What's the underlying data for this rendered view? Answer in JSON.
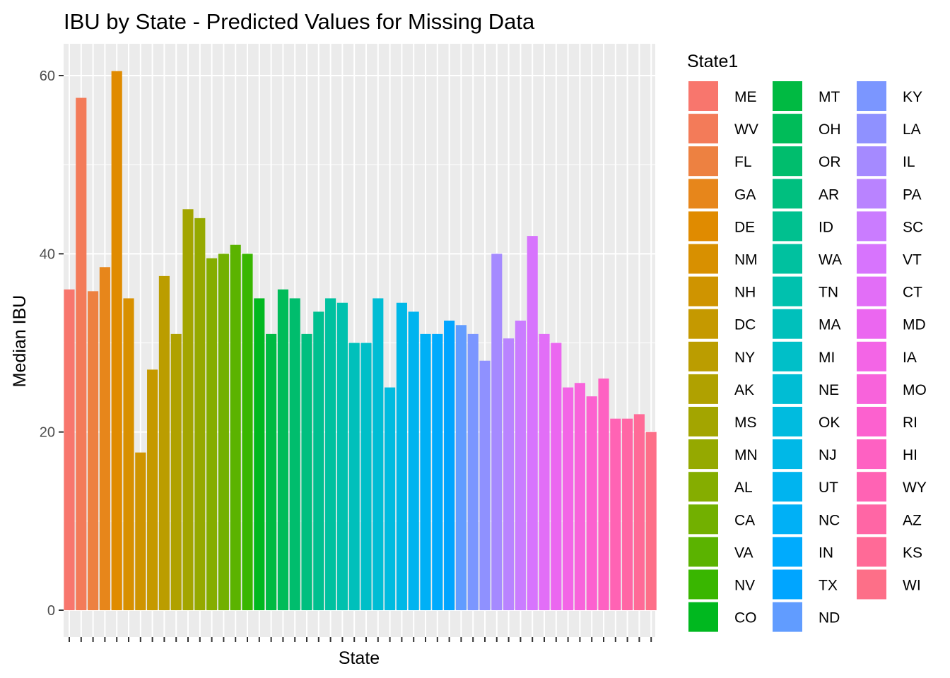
{
  "chart_data": {
    "type": "bar",
    "title": "IBU by State - Predicted Values for Missing Data",
    "xlabel": "State",
    "ylabel": "Median IBU",
    "ylim": [
      0,
      63
    ],
    "y_ticks": [
      0,
      20,
      40,
      60
    ],
    "grid": true,
    "legend_title": "State1",
    "legend_placement": "right",
    "categories": [
      "ME",
      "WV",
      "FL",
      "GA",
      "DE",
      "NM",
      "NH",
      "DC",
      "NY",
      "AK",
      "MS",
      "MN",
      "AL",
      "CA",
      "VA",
      "NV",
      "CO",
      "MT",
      "OH",
      "OR",
      "AR",
      "ID",
      "WA",
      "TN",
      "MA",
      "MI",
      "NE",
      "OK",
      "NJ",
      "UT",
      "NC",
      "IN",
      "TX",
      "ND",
      "KY",
      "LA",
      "IL",
      "PA",
      "SC",
      "VT",
      "CT",
      "MD",
      "IA",
      "MO",
      "RI",
      "HI",
      "WY",
      "AZ",
      "KS",
      "WI"
    ],
    "values": [
      36,
      57.5,
      35.8,
      38.5,
      60.5,
      35,
      17.7,
      27,
      37.5,
      31,
      45,
      44,
      39.5,
      40,
      41,
      40,
      35,
      31,
      36,
      35,
      31,
      33.5,
      35,
      34.5,
      30,
      30,
      35,
      25,
      34.5,
      33.5,
      31,
      31,
      32.5,
      32,
      31,
      28,
      40,
      30.5,
      32.5,
      42,
      31,
      30,
      25,
      25.5,
      24,
      26,
      21.5,
      21.5,
      22,
      20
    ],
    "colors": [
      "#F8766D",
      "#F37B59",
      "#ED8141",
      "#E7861B",
      "#E08B00",
      "#D89000",
      "#CF9400",
      "#C59900",
      "#BB9D00",
      "#B0A100",
      "#A3A500",
      "#95A900",
      "#85AD00",
      "#72B000",
      "#5BB300",
      "#39B600",
      "#00B81F",
      "#00BA42",
      "#00BC59",
      "#00BD6D",
      "#00BF7F",
      "#00C08F",
      "#00C19F",
      "#00C1AE",
      "#00C0BB",
      "#00BFC8",
      "#00BDD4",
      "#00BBDF",
      "#00B8E7",
      "#00B4EF",
      "#00B0F6",
      "#00ABFD",
      "#00A5FF",
      "#619CFF",
      "#7B96FF",
      "#8F91FF",
      "#A58AFF",
      "#B983FF",
      "#CA7CFF",
      "#D774FD",
      "#E26EF7",
      "#EB67F0",
      "#F365E6",
      "#F863DB",
      "#FC61CF",
      "#FE61C2",
      "#FF63B4",
      "#FF66A5",
      "#FF6A97",
      "#FD6F88"
    ]
  }
}
